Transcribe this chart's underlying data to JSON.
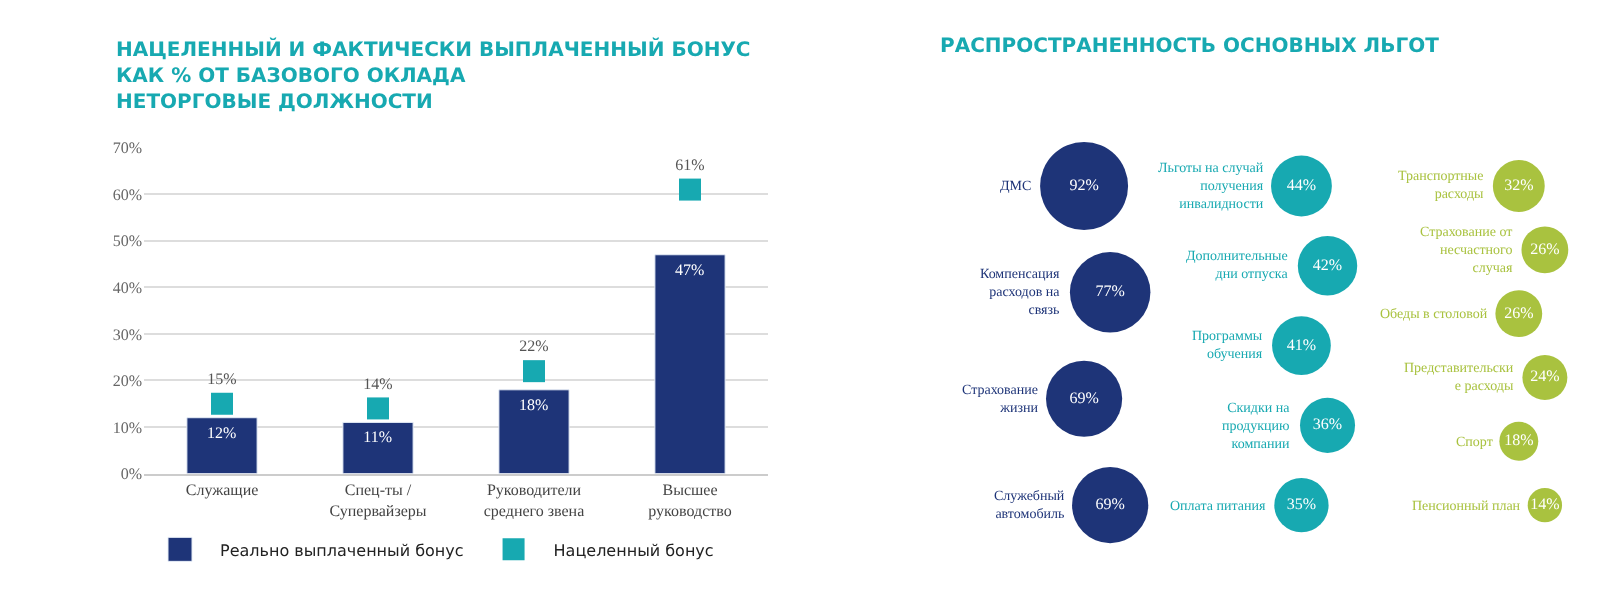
{
  "chart_data": [
    {
      "type": "bar",
      "title": "НАЦЕЛЕННЫЙ И ФАКТИЧЕСКИ ВЫПЛАЧЕННЫЙ БОНУС\nКАК % ОТ БАЗОВОГО ОКЛАДА\nНЕТОРГОВЫЕ ДОЛЖНОСТИ",
      "categories": [
        "Служащие",
        "Спец-ты / Супервайзеры",
        "Руководители среднего звена",
        "Высшее руководство"
      ],
      "series": [
        {
          "name": "Реально выплаченный бонус",
          "type": "bar",
          "color": "#1e3478",
          "values": [
            12,
            11,
            18,
            47
          ],
          "value_labels": [
            "12%",
            "11%",
            "18%",
            "47%"
          ]
        },
        {
          "name": "Нацеленный бонус",
          "type": "scatter",
          "color": "#17a9b1",
          "values": [
            15,
            14,
            22,
            61
          ],
          "value_labels": [
            "15%",
            "14%",
            "22%",
            "61%"
          ]
        }
      ],
      "ylim": [
        0,
        70
      ],
      "yticks": [
        {
          "value": 0,
          "label": "0%"
        },
        {
          "value": 10,
          "label": "10%"
        },
        {
          "value": 20,
          "label": "20%"
        },
        {
          "value": 30,
          "label": "30%"
        },
        {
          "value": 40,
          "label": "40%"
        },
        {
          "value": 50,
          "label": "50%"
        },
        {
          "value": 60,
          "label": "60%"
        },
        {
          "value": 70,
          "label": "70%"
        }
      ],
      "grid": "y",
      "legend": "bottom",
      "marker": "square"
    },
    {
      "type": "other",
      "title": "РАСПРОСТРАНЕННОСТЬ ОСНОВНЫХ ЛЬГОТ",
      "categories": [
        "ДМС",
        "Компенсация расходов на связь",
        "Страхование жизни",
        "Служебный автомобиль",
        "Льготы на случай получения инвалидности",
        "Дополнительные дни отпуска",
        "Программы обучения",
        "Скидки на продукцию компании",
        "Оплата питания",
        "Транспортные расходы",
        "Страхование от несчастного случая",
        "Обеды в столовой",
        "Представительские расходы",
        "Спорт",
        "Пенсионный план"
      ],
      "values": [
        92,
        77,
        69,
        69,
        44,
        42,
        41,
        36,
        35,
        32,
        26,
        26,
        24,
        18,
        14
      ],
      "value_labels": [
        "92%",
        "77%",
        "69%",
        "69%",
        "44%",
        "42%",
        "41%",
        "36%",
        "35%",
        "32%",
        "26%",
        "26%",
        "24%",
        "18%",
        "14%"
      ],
      "colors": [
        "#1e3478",
        "#1e3478",
        "#1e3478",
        "#1e3478",
        "#17a9b1",
        "#17a9b1",
        "#17a9b1",
        "#17a9b1",
        "#17a9b1",
        "#a9c23f",
        "#a9c23f",
        "#a9c23f",
        "#a9c23f",
        "#a9c23f",
        "#a9c23f"
      ]
    }
  ]
}
